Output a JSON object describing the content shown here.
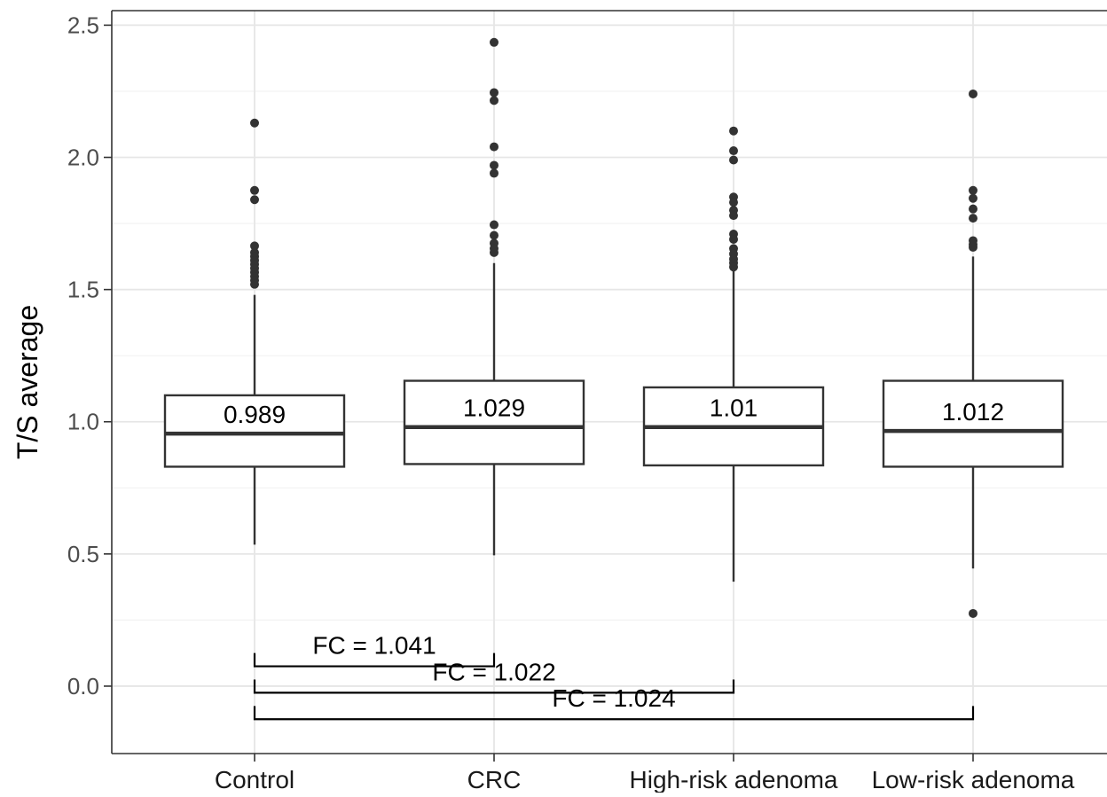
{
  "chart_data": {
    "type": "boxplot",
    "title": "",
    "xlabel": "",
    "ylabel": "T/S average",
    "ylim": [
      -0.255,
      2.555
    ],
    "yticks": [
      0.0,
      0.5,
      1.0,
      1.5,
      2.0,
      2.5
    ],
    "ytick_labels": [
      "0.0",
      "0.5",
      "1.0",
      "1.5",
      "2.0",
      "2.5"
    ],
    "grid": true,
    "categories": [
      "Control",
      "CRC",
      "High-risk adenoma",
      "Low-risk adenoma"
    ],
    "boxes": [
      {
        "category": "Control",
        "q1": 0.83,
        "median": 0.955,
        "q3": 1.1,
        "whisker_low": 0.535,
        "whisker_high": 1.48,
        "median_label": "0.989",
        "outliers": [
          2.13,
          1.875,
          1.84,
          1.665,
          1.64,
          1.625,
          1.61,
          1.595,
          1.58,
          1.565,
          1.55,
          1.535,
          1.52
        ]
      },
      {
        "category": "CRC",
        "q1": 0.84,
        "median": 0.98,
        "q3": 1.155,
        "whisker_low": 0.495,
        "whisker_high": 1.6,
        "median_label": "1.029",
        "outliers": [
          2.435,
          2.245,
          2.215,
          2.04,
          1.97,
          1.94,
          1.745,
          1.705,
          1.675,
          1.655,
          1.64
        ]
      },
      {
        "category": "High-risk adenoma",
        "q1": 0.835,
        "median": 0.98,
        "q3": 1.13,
        "whisker_low": 0.395,
        "whisker_high": 1.575,
        "median_label": "1.01",
        "outliers": [
          2.1,
          2.025,
          1.99,
          1.85,
          1.83,
          1.8,
          1.78,
          1.71,
          1.69,
          1.655,
          1.635,
          1.615,
          1.6,
          1.585
        ]
      },
      {
        "category": "Low-risk adenoma",
        "q1": 0.83,
        "median": 0.965,
        "q3": 1.155,
        "whisker_low": 0.445,
        "whisker_high": 1.625,
        "median_label": "1.012",
        "outliers": [
          2.24,
          1.875,
          1.845,
          1.805,
          1.77,
          1.685,
          1.67,
          1.66,
          0.275
        ]
      }
    ],
    "comparisons": [
      {
        "from": "Control",
        "to": "CRC",
        "label": "FC = 1.041",
        "y": 0.075,
        "tip": 0.125
      },
      {
        "from": "Control",
        "to": "High-risk adenoma",
        "label": "FC = 1.022",
        "y": -0.025,
        "tip": 0.025
      },
      {
        "from": "Control",
        "to": "Low-risk adenoma",
        "label": "FC = 1.024",
        "y": -0.125,
        "tip": -0.075
      }
    ]
  }
}
